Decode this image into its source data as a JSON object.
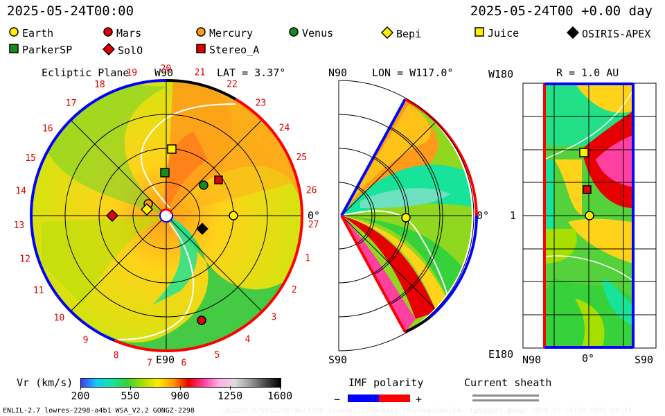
{
  "header": {
    "left_time": "2025-05-24T00:00",
    "right_time": "2025-05-24T00 +0.00 day"
  },
  "legend": [
    {
      "name": "Earth",
      "shape": "circle",
      "color": "#ffee00"
    },
    {
      "name": "Mars",
      "shape": "circle",
      "color": "#e00000"
    },
    {
      "name": "Mercury",
      "shape": "circle",
      "color": "#ff9a1a"
    },
    {
      "name": "Venus",
      "shape": "circle",
      "color": "#1a8a1a"
    },
    {
      "name": "Bepi",
      "shape": "diamond",
      "color": "#ffee00"
    },
    {
      "name": "Juice",
      "shape": "square",
      "color": "#ffee00"
    },
    {
      "name": "OSIRIS-APEX",
      "shape": "diamond",
      "color": "#000000"
    },
    {
      "name": "ParkerSP",
      "shape": "square",
      "color": "#1a8a1a"
    },
    {
      "name": "SolO",
      "shape": "diamond",
      "color": "#e00000"
    },
    {
      "name": "Stereo_A",
      "shape": "square",
      "color": "#e00000"
    }
  ],
  "ecliptic": {
    "title": "Ecliptic Plane",
    "lat": "LAT = 3.37°",
    "top_label": "W90",
    "bottom_label": "E90",
    "right_label": "0°",
    "carrington_days": [
      "19",
      "20",
      "21",
      "22",
      "23",
      "24",
      "25",
      "26",
      "27",
      "1",
      "2",
      "3",
      "4",
      "5",
      "6",
      "7",
      "8",
      "9",
      "10",
      "11",
      "12",
      "13",
      "14",
      "15",
      "16",
      "17",
      "18"
    ]
  },
  "meridional": {
    "lon": "LON = W117.0°",
    "top_label": "N90",
    "bottom_label": "S90",
    "right_label": "0°"
  },
  "radial": {
    "title": "R = 1.0 AU",
    "top_label": "W180",
    "bottom_label": "E180",
    "mid_label": "1",
    "x_left": "N90",
    "x_mid": "0°",
    "x_right": "S90"
  },
  "colorbar": {
    "label": "Vr (km/s)",
    "ticks": [
      "200",
      "550",
      "900",
      "1250",
      "1600"
    ],
    "colors": [
      "#3a3aff",
      "#19c8ff",
      "#17e39b",
      "#37d23b",
      "#a6df00",
      "#ffe900",
      "#ff9a00",
      "#e80000",
      "#ff40a0",
      "#ffb0e8",
      "#dddddd",
      "#9c9c9c",
      "#4a4a4a",
      "#000000"
    ]
  },
  "imf": {
    "label": "IMF polarity",
    "minus": "−",
    "plus": "+"
  },
  "sheath": {
    "label": "Current sheath"
  },
  "footer": {
    "left": "ENLIL-2.7 lowres-2298-a4b1 WSA_V2.2 GONGZ-2298",
    "right": "UNIQUE2025052200706/2298.1d.a4b1.2298-a4b1.16--noplumnled--1g53q5d2.gongz-2025-05-24T00    2025-05-24"
  }
}
